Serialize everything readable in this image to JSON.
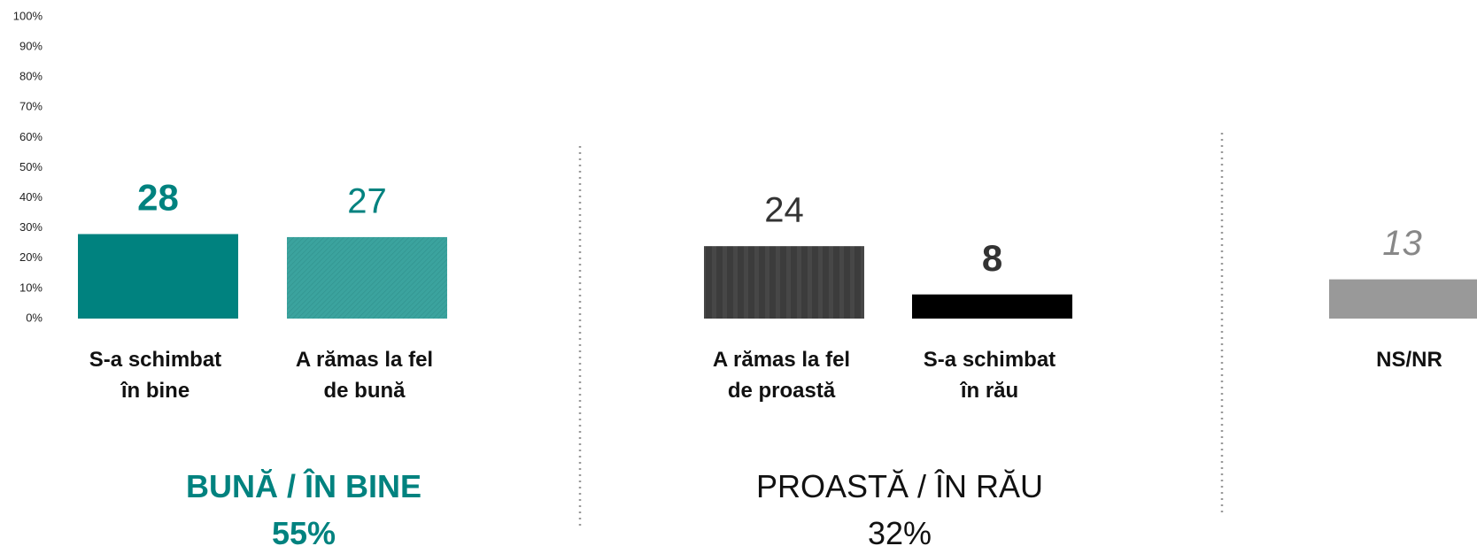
{
  "chart_data": {
    "type": "bar",
    "categories": [
      "S-a schimbat\nîn bine",
      "A rămas la fel\nde bună",
      "A rămas la fel\nde proastă",
      "S-a schimbat\nîn rău",
      "NS/NR"
    ],
    "values": [
      28,
      27,
      24,
      8,
      13
    ],
    "colors": [
      "#00827f",
      "#3ba39e",
      "#3c3c3c",
      "#000000",
      "#999999"
    ],
    "ylim": [
      0,
      100
    ],
    "yticks": [
      {
        "value": 0,
        "label": "0%"
      },
      {
        "value": 10,
        "label": "10%"
      },
      {
        "value": 20,
        "label": "20%"
      },
      {
        "value": 30,
        "label": "30%"
      },
      {
        "value": 40,
        "label": "40%"
      },
      {
        "value": 50,
        "label": "50%"
      },
      {
        "value": 60,
        "label": "60%"
      },
      {
        "value": 70,
        "label": "70%"
      },
      {
        "value": 80,
        "label": "80%"
      },
      {
        "value": 90,
        "label": "90%"
      },
      {
        "value": 100,
        "label": "100%"
      }
    ],
    "groups": [
      {
        "title": "BUNĂ / ÎN BINE",
        "total": "55%"
      },
      {
        "title": "PROASTĂ / ÎN RĂU",
        "total": "32%"
      }
    ]
  }
}
